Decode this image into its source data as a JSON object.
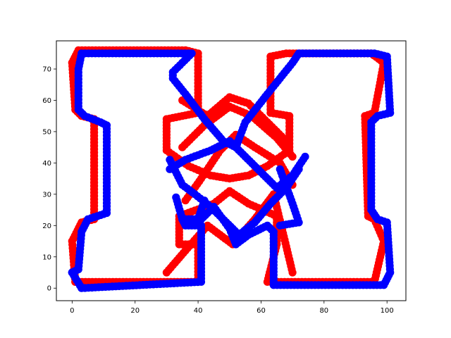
{
  "chart_data": {
    "type": "scatter",
    "title": "",
    "xlabel": "",
    "ylabel": "",
    "xlim": [
      -5,
      106
    ],
    "ylim": [
      -4,
      79
    ],
    "grid": false,
    "legend": "none",
    "xticks": [
      0,
      20,
      40,
      60,
      80,
      100
    ],
    "yticks": [
      0,
      10,
      20,
      30,
      40,
      50,
      60,
      70
    ],
    "series": [
      {
        "color": "#ff0000",
        "marker": "circle",
        "paths": [
          [
            [
              1,
              2
            ],
            [
              40,
              2
            ],
            [
              40,
              14
            ],
            [
              34,
              14
            ],
            [
              34,
              23
            ],
            [
              45,
              27
            ],
            [
              50,
              31
            ],
            [
              56,
              27
            ],
            [
              65,
              23
            ],
            [
              65,
              14
            ],
            [
              62,
              2
            ],
            [
              96,
              2
            ],
            [
              99,
              15
            ],
            [
              96,
              22
            ],
            [
              94,
              23
            ],
            [
              93,
              55
            ],
            [
              96,
              56
            ],
            [
              99,
              72
            ],
            [
              95,
              75
            ],
            [
              68,
              75
            ],
            [
              63,
              74
            ],
            [
              63,
              56
            ],
            [
              69,
              55
            ],
            [
              69,
              44
            ],
            [
              62,
              39
            ],
            [
              56,
              36
            ],
            [
              50,
              35
            ],
            [
              44,
              36
            ],
            [
              37,
              39
            ],
            [
              30,
              44
            ],
            [
              30,
              54
            ],
            [
              40,
              56
            ],
            [
              40,
              75
            ],
            [
              36,
              76
            ],
            [
              2,
              76
            ],
            [
              0,
              72
            ],
            [
              1,
              57
            ],
            [
              3,
              55
            ],
            [
              7,
              54
            ],
            [
              7,
              22
            ],
            [
              3,
              21
            ],
            [
              0,
              15
            ],
            [
              1,
              2
            ]
          ],
          [
            [
              30,
              5
            ],
            [
              36,
              12
            ],
            [
              43,
              20
            ],
            [
              51,
              14
            ],
            [
              58,
              22
            ],
            [
              64,
              30
            ],
            [
              70,
              5
            ]
          ],
          [
            [
              36,
              28
            ],
            [
              41,
              35
            ],
            [
              47,
              44
            ],
            [
              52,
              49
            ],
            [
              58,
              45
            ],
            [
              66,
              40
            ],
            [
              70,
              33
            ]
          ],
          [
            [
              35,
              45
            ],
            [
              42,
              52
            ],
            [
              50,
              58
            ],
            [
              57,
              55
            ],
            [
              65,
              48
            ],
            [
              70,
              42
            ]
          ],
          [
            [
              35,
              60
            ],
            [
              43,
              55
            ],
            [
              50,
              61
            ],
            [
              56,
              59
            ],
            [
              62,
              53
            ],
            [
              68,
              47
            ]
          ]
        ]
      },
      {
        "color": "#0000ff",
        "marker": "circle",
        "paths": [
          [
            [
              0,
              5
            ],
            [
              3,
              0
            ],
            [
              41,
              2
            ],
            [
              41,
              20
            ],
            [
              36,
              20
            ],
            [
              35,
              22
            ],
            [
              41,
              22
            ],
            [
              45,
              26
            ],
            [
              50,
              19
            ],
            [
              52,
              14
            ],
            [
              56,
              17
            ],
            [
              62,
              20
            ],
            [
              64,
              18
            ],
            [
              64,
              1
            ],
            [
              99,
              1
            ],
            [
              101,
              5
            ],
            [
              100,
              21
            ],
            [
              97,
              22
            ],
            [
              95,
              25
            ],
            [
              95,
              53
            ],
            [
              97,
              55
            ],
            [
              101,
              56
            ],
            [
              100,
              74
            ],
            [
              96,
              75
            ],
            [
              72,
              75
            ],
            [
              70,
              72
            ],
            [
              62,
              62
            ],
            [
              55,
              53
            ],
            [
              52,
              45
            ],
            [
              48,
              47
            ],
            [
              42,
              54
            ],
            [
              36,
              62
            ],
            [
              32,
              67
            ],
            [
              32,
              69
            ],
            [
              38,
              75
            ],
            [
              3,
              75
            ],
            [
              2,
              70
            ],
            [
              2,
              57
            ],
            [
              4,
              55
            ],
            [
              9,
              53
            ],
            [
              11,
              52
            ],
            [
              11,
              24
            ],
            [
              5,
              22
            ],
            [
              3,
              18
            ],
            [
              2,
              6
            ],
            [
              0,
              5
            ]
          ],
          [
            [
              31,
              38
            ],
            [
              36,
              41
            ],
            [
              44,
              44
            ],
            [
              50,
              47
            ],
            [
              55,
              42
            ],
            [
              60,
              37
            ],
            [
              65,
              32
            ],
            [
              70,
              36
            ],
            [
              74,
              42
            ]
          ],
          [
            [
              31,
              41
            ],
            [
              35,
              33
            ],
            [
              39,
              30
            ],
            [
              44,
              26
            ],
            [
              49,
              21
            ],
            [
              53,
              17
            ],
            [
              58,
              21
            ],
            [
              63,
              27
            ],
            [
              68,
              32
            ],
            [
              72,
              38
            ]
          ],
          [
            [
              33,
              29
            ],
            [
              35,
              22
            ],
            [
              40,
              22
            ],
            [
              42,
              28
            ]
          ],
          [
            [
              66,
              38
            ],
            [
              70,
              27
            ],
            [
              72,
              21
            ],
            [
              66,
              20
            ]
          ]
        ]
      }
    ]
  }
}
